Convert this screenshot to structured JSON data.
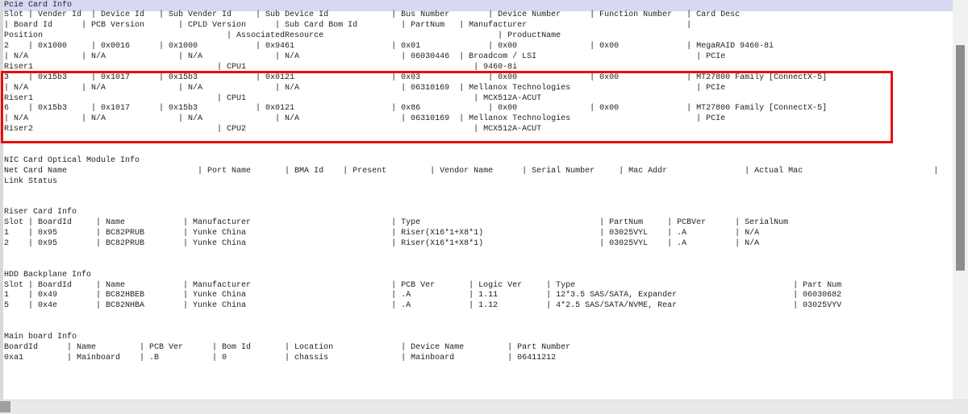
{
  "colors": {
    "bg": "#ffffff",
    "text": "#222222",
    "selection": "#d7d9f2",
    "gutter": "#d9d9d9",
    "track": "#f1f1ef",
    "thumb": "#8c8c8c",
    "hbar": "#e9e9e9",
    "hthumb": "#9f9f9f",
    "annotation": "#ec0c0c"
  },
  "console": {
    "selected_line": 0,
    "lines": [
      [
        [
          0,
          "Pcie Card Info"
        ]
      ],
      [
        [
          0,
          "Slot"
        ],
        [
          5,
          "|"
        ],
        [
          7,
          "Vender Id"
        ],
        [
          18,
          "|"
        ],
        [
          20,
          "Device Id"
        ],
        [
          32,
          "|"
        ],
        [
          34,
          "Sub Vender Id"
        ],
        [
          52,
          "|"
        ],
        [
          54,
          "Sub Device Id"
        ],
        [
          80,
          "|"
        ],
        [
          82,
          "Bus Number"
        ],
        [
          100,
          "|"
        ],
        [
          102,
          "Device Number"
        ],
        [
          121,
          "|"
        ],
        [
          123,
          "Function Number"
        ],
        [
          141,
          "|"
        ],
        [
          143,
          "Card Desc"
        ]
      ],
      [
        [
          0,
          "|"
        ],
        [
          2,
          "Board Id"
        ],
        [
          16,
          "|"
        ],
        [
          18,
          "PCB Version"
        ],
        [
          36,
          "|"
        ],
        [
          38,
          "CPLD Version"
        ],
        [
          56,
          "|"
        ],
        [
          58,
          "Sub Card Bom Id"
        ],
        [
          82,
          "|"
        ],
        [
          84,
          "PartNum"
        ],
        [
          94,
          "|"
        ],
        [
          96,
          "Manufacturer"
        ],
        [
          141,
          "|"
        ]
      ],
      [
        [
          0,
          "Position"
        ],
        [
          46,
          "|"
        ],
        [
          48,
          "AssociatedResource"
        ],
        [
          102,
          "|"
        ],
        [
          104,
          "ProductName"
        ]
      ],
      [
        [
          0,
          "2"
        ],
        [
          5,
          "|"
        ],
        [
          7,
          "0x1000"
        ],
        [
          18,
          "|"
        ],
        [
          20,
          "0x0016"
        ],
        [
          32,
          "|"
        ],
        [
          34,
          "0x1000"
        ],
        [
          52,
          "|"
        ],
        [
          54,
          "0x9461"
        ],
        [
          80,
          "|"
        ],
        [
          82,
          "0x01"
        ],
        [
          100,
          "|"
        ],
        [
          102,
          "0x00"
        ],
        [
          121,
          "|"
        ],
        [
          123,
          "0x00"
        ],
        [
          141,
          "|"
        ],
        [
          143,
          "MegaRAID 9460-8i"
        ]
      ],
      [
        [
          0,
          "|"
        ],
        [
          2,
          "N/A"
        ],
        [
          16,
          "|"
        ],
        [
          18,
          "N/A"
        ],
        [
          36,
          "|"
        ],
        [
          38,
          "N/A"
        ],
        [
          56,
          "|"
        ],
        [
          58,
          "N/A"
        ],
        [
          82,
          "|"
        ],
        [
          84,
          "06030446"
        ],
        [
          94,
          "|"
        ],
        [
          96,
          "Broadcom / LSI"
        ],
        [
          143,
          "|"
        ],
        [
          145,
          "PCIe"
        ]
      ],
      [
        [
          0,
          "Riser1"
        ],
        [
          44,
          "|"
        ],
        [
          46,
          "CPU1"
        ],
        [
          97,
          "|"
        ],
        [
          99,
          "9460-8i"
        ]
      ],
      [
        [
          0,
          "3"
        ],
        [
          5,
          "|"
        ],
        [
          7,
          "0x15b3"
        ],
        [
          18,
          "|"
        ],
        [
          20,
          "0x1017"
        ],
        [
          32,
          "|"
        ],
        [
          34,
          "0x15b3"
        ],
        [
          52,
          "|"
        ],
        [
          54,
          "0x0121"
        ],
        [
          80,
          "|"
        ],
        [
          82,
          "0x03"
        ],
        [
          100,
          "|"
        ],
        [
          102,
          "0x00"
        ],
        [
          121,
          "|"
        ],
        [
          123,
          "0x00"
        ],
        [
          141,
          "|"
        ],
        [
          143,
          "MT27800 Family [ConnectX-5]"
        ]
      ],
      [
        [
          0,
          "|"
        ],
        [
          2,
          "N/A"
        ],
        [
          16,
          "|"
        ],
        [
          18,
          "N/A"
        ],
        [
          36,
          "|"
        ],
        [
          38,
          "N/A"
        ],
        [
          56,
          "|"
        ],
        [
          58,
          "N/A"
        ],
        [
          82,
          "|"
        ],
        [
          84,
          "06310169"
        ],
        [
          94,
          "|"
        ],
        [
          96,
          "Mellanox Technologies"
        ],
        [
          143,
          "|"
        ],
        [
          145,
          "PCIe"
        ]
      ],
      [
        [
          0,
          "Riser1"
        ],
        [
          44,
          "|"
        ],
        [
          46,
          "CPU1"
        ],
        [
          97,
          "|"
        ],
        [
          99,
          "MCX512A-ACUT"
        ]
      ],
      [
        [
          0,
          "6"
        ],
        [
          5,
          "|"
        ],
        [
          7,
          "0x15b3"
        ],
        [
          18,
          "|"
        ],
        [
          20,
          "0x1017"
        ],
        [
          32,
          "|"
        ],
        [
          34,
          "0x15b3"
        ],
        [
          52,
          "|"
        ],
        [
          54,
          "0x0121"
        ],
        [
          80,
          "|"
        ],
        [
          82,
          "0x86"
        ],
        [
          100,
          "|"
        ],
        [
          102,
          "0x00"
        ],
        [
          121,
          "|"
        ],
        [
          123,
          "0x00"
        ],
        [
          141,
          "|"
        ],
        [
          143,
          "MT27800 Family [ConnectX-5]"
        ]
      ],
      [
        [
          0,
          "|"
        ],
        [
          2,
          "N/A"
        ],
        [
          16,
          "|"
        ],
        [
          18,
          "N/A"
        ],
        [
          36,
          "|"
        ],
        [
          38,
          "N/A"
        ],
        [
          56,
          "|"
        ],
        [
          58,
          "N/A"
        ],
        [
          82,
          "|"
        ],
        [
          84,
          "06310169"
        ],
        [
          94,
          "|"
        ],
        [
          96,
          "Mellanox Technologies"
        ],
        [
          143,
          "|"
        ],
        [
          145,
          "PCIe"
        ]
      ],
      [
        [
          0,
          "Riser2"
        ],
        [
          44,
          "|"
        ],
        [
          46,
          "CPU2"
        ],
        [
          97,
          "|"
        ],
        [
          99,
          "MCX512A-ACUT"
        ]
      ],
      [],
      [],
      [
        [
          0,
          "NIC Card Optical Module Info"
        ]
      ],
      [
        [
          0,
          "Net Card Name"
        ],
        [
          40,
          "|"
        ],
        [
          42,
          "Port Name"
        ],
        [
          58,
          "|"
        ],
        [
          60,
          "BMA Id"
        ],
        [
          70,
          "|"
        ],
        [
          72,
          "Present"
        ],
        [
          88,
          "|"
        ],
        [
          90,
          "Vendor Name"
        ],
        [
          107,
          "|"
        ],
        [
          109,
          "Serial Number"
        ],
        [
          127,
          "|"
        ],
        [
          129,
          "Mac Addr"
        ],
        [
          153,
          "|"
        ],
        [
          155,
          "Actual Mac"
        ],
        [
          192,
          "|"
        ]
      ],
      [
        [
          0,
          "Link Status"
        ]
      ],
      [],
      [],
      [
        [
          0,
          "Riser Card Info"
        ]
      ],
      [
        [
          0,
          "Slot"
        ],
        [
          5,
          "|"
        ],
        [
          7,
          "BoardId"
        ],
        [
          19,
          "|"
        ],
        [
          21,
          "Name"
        ],
        [
          37,
          "|"
        ],
        [
          39,
          "Manufacturer"
        ],
        [
          80,
          "|"
        ],
        [
          82,
          "Type"
        ],
        [
          123,
          "|"
        ],
        [
          125,
          "PartNum"
        ],
        [
          137,
          "|"
        ],
        [
          139,
          "PCBVer"
        ],
        [
          151,
          "|"
        ],
        [
          153,
          "SerialNum"
        ]
      ],
      [
        [
          0,
          "1"
        ],
        [
          5,
          "|"
        ],
        [
          7,
          "0x95"
        ],
        [
          19,
          "|"
        ],
        [
          21,
          "BC82PRUB"
        ],
        [
          37,
          "|"
        ],
        [
          39,
          "Yunke China"
        ],
        [
          80,
          "|"
        ],
        [
          82,
          "Riser(X16*1+X8*1)"
        ],
        [
          123,
          "|"
        ],
        [
          125,
          "03025VYL"
        ],
        [
          137,
          "|"
        ],
        [
          139,
          ".A"
        ],
        [
          151,
          "|"
        ],
        [
          153,
          "N/A"
        ]
      ],
      [
        [
          0,
          "2"
        ],
        [
          5,
          "|"
        ],
        [
          7,
          "0x95"
        ],
        [
          19,
          "|"
        ],
        [
          21,
          "BC82PRUB"
        ],
        [
          37,
          "|"
        ],
        [
          39,
          "Yunke China"
        ],
        [
          80,
          "|"
        ],
        [
          82,
          "Riser(X16*1+X8*1)"
        ],
        [
          123,
          "|"
        ],
        [
          125,
          "03025VYL"
        ],
        [
          137,
          "|"
        ],
        [
          139,
          ".A"
        ],
        [
          151,
          "|"
        ],
        [
          153,
          "N/A"
        ]
      ],
      [],
      [],
      [
        [
          0,
          "HDD Backplane Info"
        ]
      ],
      [
        [
          0,
          "Slot"
        ],
        [
          5,
          "|"
        ],
        [
          7,
          "BoardId"
        ],
        [
          19,
          "|"
        ],
        [
          21,
          "Name"
        ],
        [
          37,
          "|"
        ],
        [
          39,
          "Manufacturer"
        ],
        [
          80,
          "|"
        ],
        [
          82,
          "PCB Ver"
        ],
        [
          96,
          "|"
        ],
        [
          98,
          "Logic Ver"
        ],
        [
          112,
          "|"
        ],
        [
          114,
          "Type"
        ],
        [
          163,
          "|"
        ],
        [
          165,
          "Part Num"
        ]
      ],
      [
        [
          0,
          "1"
        ],
        [
          5,
          "|"
        ],
        [
          7,
          "0x49"
        ],
        [
          19,
          "|"
        ],
        [
          21,
          "BC82HBEB"
        ],
        [
          37,
          "|"
        ],
        [
          39,
          "Yunke China"
        ],
        [
          80,
          "|"
        ],
        [
          82,
          ".A"
        ],
        [
          96,
          "|"
        ],
        [
          98,
          "1.11"
        ],
        [
          112,
          "|"
        ],
        [
          114,
          "12*3.5 SAS/SATA, Expander"
        ],
        [
          163,
          "|"
        ],
        [
          165,
          "06030682"
        ]
      ],
      [
        [
          0,
          "5"
        ],
        [
          5,
          "|"
        ],
        [
          7,
          "0x4e"
        ],
        [
          19,
          "|"
        ],
        [
          21,
          "BC82NHBA"
        ],
        [
          37,
          "|"
        ],
        [
          39,
          "Yunke China"
        ],
        [
          80,
          "|"
        ],
        [
          82,
          ".A"
        ],
        [
          96,
          "|"
        ],
        [
          98,
          "1.12"
        ],
        [
          112,
          "|"
        ],
        [
          114,
          "4*2.5 SAS/SATA/NVME, Rear"
        ],
        [
          163,
          "|"
        ],
        [
          165,
          "03025VYV"
        ]
      ],
      [],
      [],
      [
        [
          0,
          "Main board Info"
        ]
      ],
      [
        [
          0,
          "BoardId"
        ],
        [
          13,
          "|"
        ],
        [
          15,
          "Name"
        ],
        [
          28,
          "|"
        ],
        [
          30,
          "PCB Ver"
        ],
        [
          43,
          "|"
        ],
        [
          45,
          "Bom Id"
        ],
        [
          58,
          "|"
        ],
        [
          60,
          "Location"
        ],
        [
          82,
          "|"
        ],
        [
          84,
          "Device Name"
        ],
        [
          104,
          "|"
        ],
        [
          106,
          "Part Number"
        ]
      ],
      [
        [
          0,
          "0xa1"
        ],
        [
          13,
          "|"
        ],
        [
          15,
          "Mainboard"
        ],
        [
          28,
          "|"
        ],
        [
          30,
          ".B"
        ],
        [
          43,
          "|"
        ],
        [
          45,
          "0"
        ],
        [
          58,
          "|"
        ],
        [
          60,
          "chassis"
        ],
        [
          82,
          "|"
        ],
        [
          84,
          "Mainboard"
        ],
        [
          104,
          "|"
        ],
        [
          106,
          "06411212"
        ]
      ]
    ]
  }
}
